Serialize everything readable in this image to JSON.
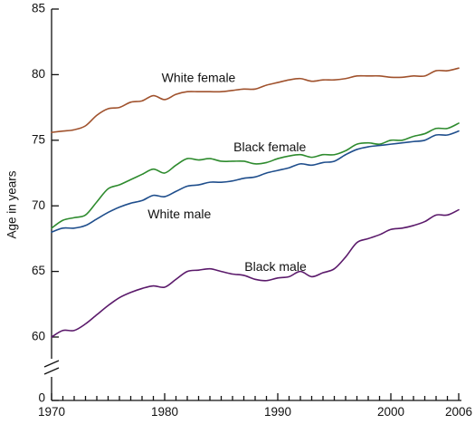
{
  "chart_data": {
    "type": "line",
    "title": "",
    "xlabel": "",
    "ylabel": "Age in years",
    "xlim": [
      1970,
      2006
    ],
    "ylim": [
      58.5,
      85
    ],
    "axis_break": true,
    "x_ticks": [
      1970,
      1980,
      1990,
      2000,
      2006
    ],
    "y_ticks": [
      60,
      65,
      70,
      75,
      80,
      85
    ],
    "y_zero_label": "0",
    "grid": false,
    "legend": "inline-labels",
    "x": [
      1970,
      1971,
      1972,
      1973,
      1974,
      1975,
      1976,
      1977,
      1978,
      1979,
      1980,
      1981,
      1982,
      1983,
      1984,
      1985,
      1986,
      1987,
      1988,
      1989,
      1990,
      1991,
      1992,
      1993,
      1994,
      1995,
      1996,
      1997,
      1998,
      1999,
      2000,
      2001,
      2002,
      2003,
      2004,
      2005,
      2006
    ],
    "series": [
      {
        "name": "White female",
        "color": "#a0522d",
        "values": [
          75.6,
          75.7,
          75.8,
          76.1,
          76.9,
          77.4,
          77.5,
          77.9,
          78.0,
          78.4,
          78.1,
          78.5,
          78.7,
          78.7,
          78.7,
          78.7,
          78.8,
          78.9,
          78.9,
          79.2,
          79.4,
          79.6,
          79.7,
          79.5,
          79.6,
          79.6,
          79.7,
          79.9,
          79.9,
          79.9,
          79.8,
          79.8,
          79.9,
          79.9,
          80.3,
          80.3,
          80.5
        ]
      },
      {
        "name": "Black female",
        "color": "#2e8b2e",
        "values": [
          68.3,
          68.9,
          69.1,
          69.3,
          70.3,
          71.3,
          71.6,
          72.0,
          72.4,
          72.8,
          72.5,
          73.1,
          73.6,
          73.5,
          73.6,
          73.4,
          73.4,
          73.4,
          73.2,
          73.3,
          73.6,
          73.8,
          73.9,
          73.7,
          73.9,
          73.9,
          74.2,
          74.7,
          74.8,
          74.7,
          75.0,
          75.0,
          75.3,
          75.5,
          75.9,
          75.9,
          76.3
        ]
      },
      {
        "name": "White male",
        "color": "#1f4e8c",
        "values": [
          68.0,
          68.3,
          68.3,
          68.5,
          69.0,
          69.5,
          69.9,
          70.2,
          70.4,
          70.8,
          70.7,
          71.1,
          71.5,
          71.6,
          71.8,
          71.8,
          71.9,
          72.1,
          72.2,
          72.5,
          72.7,
          72.9,
          73.2,
          73.1,
          73.3,
          73.4,
          73.9,
          74.3,
          74.5,
          74.6,
          74.7,
          74.8,
          74.9,
          75.0,
          75.4,
          75.4,
          75.7
        ]
      },
      {
        "name": "Black male",
        "color": "#5b1a6b",
        "values": [
          60.0,
          60.5,
          60.5,
          61.0,
          61.7,
          62.4,
          63.0,
          63.4,
          63.7,
          63.9,
          63.8,
          64.4,
          65.0,
          65.1,
          65.2,
          65.0,
          64.8,
          64.7,
          64.4,
          64.3,
          64.5,
          64.6,
          65.0,
          64.6,
          64.9,
          65.2,
          66.1,
          67.2,
          67.5,
          67.8,
          68.2,
          68.3,
          68.5,
          68.8,
          69.3,
          69.3,
          69.7
        ]
      }
    ],
    "annotations": [
      {
        "text": "White female",
        "x": 1983.0,
        "y": 79.7,
        "series": "White female"
      },
      {
        "text": "Black female",
        "x": 1989.3,
        "y": 74.4,
        "series": "Black female"
      },
      {
        "text": "White male",
        "x": 1981.3,
        "y": 69.3,
        "series": "White male"
      },
      {
        "text": "Black male",
        "x": 1989.8,
        "y": 65.3,
        "series": "Black male"
      }
    ]
  }
}
